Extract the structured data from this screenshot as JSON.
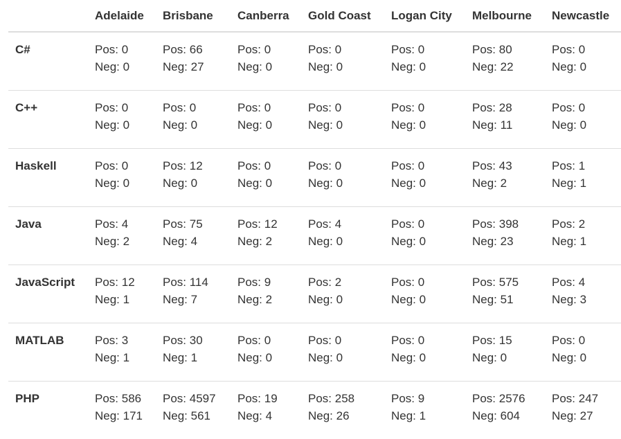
{
  "table": {
    "columns": [
      "",
      "Adelaide",
      "Brisbane",
      "Canberra",
      "Gold Coast",
      "Logan City",
      "Melbourne",
      "Newcastle"
    ],
    "rows": [
      {
        "language": "C#",
        "cells": [
          {
            "pos": "Pos: 0",
            "neg": "Neg: 0"
          },
          {
            "pos": "Pos: 66",
            "neg": "Neg: 27"
          },
          {
            "pos": "Pos: 0",
            "neg": "Neg: 0"
          },
          {
            "pos": "Pos: 0",
            "neg": "Neg: 0"
          },
          {
            "pos": "Pos: 0",
            "neg": "Neg: 0"
          },
          {
            "pos": "Pos: 80",
            "neg": "Neg: 22"
          },
          {
            "pos": "Pos: 0",
            "neg": "Neg: 0"
          }
        ]
      },
      {
        "language": "C++",
        "cells": [
          {
            "pos": "Pos: 0",
            "neg": "Neg: 0"
          },
          {
            "pos": "Pos: 0",
            "neg": "Neg: 0"
          },
          {
            "pos": "Pos: 0",
            "neg": "Neg: 0"
          },
          {
            "pos": "Pos: 0",
            "neg": "Neg: 0"
          },
          {
            "pos": "Pos: 0",
            "neg": "Neg: 0"
          },
          {
            "pos": "Pos: 28",
            "neg": "Neg: 11"
          },
          {
            "pos": "Pos: 0",
            "neg": "Neg: 0"
          }
        ]
      },
      {
        "language": "Haskell",
        "cells": [
          {
            "pos": "Pos: 0",
            "neg": "Neg: 0"
          },
          {
            "pos": "Pos: 12",
            "neg": "Neg: 0"
          },
          {
            "pos": "Pos: 0",
            "neg": "Neg: 0"
          },
          {
            "pos": "Pos: 0",
            "neg": "Neg: 0"
          },
          {
            "pos": "Pos: 0",
            "neg": "Neg: 0"
          },
          {
            "pos": "Pos: 43",
            "neg": "Neg: 2"
          },
          {
            "pos": "Pos: 1",
            "neg": "Neg: 1"
          }
        ]
      },
      {
        "language": "Java",
        "cells": [
          {
            "pos": "Pos: 4",
            "neg": "Neg: 2"
          },
          {
            "pos": "Pos: 75",
            "neg": "Neg: 4"
          },
          {
            "pos": "Pos: 12",
            "neg": "Neg: 2"
          },
          {
            "pos": "Pos: 4",
            "neg": "Neg: 0"
          },
          {
            "pos": "Pos: 0",
            "neg": "Neg: 0"
          },
          {
            "pos": "Pos: 398",
            "neg": "Neg: 23"
          },
          {
            "pos": "Pos: 2",
            "neg": "Neg: 1"
          }
        ]
      },
      {
        "language": "JavaScript",
        "cells": [
          {
            "pos": "Pos: 12",
            "neg": "Neg: 1"
          },
          {
            "pos": "Pos: 114",
            "neg": "Neg: 7"
          },
          {
            "pos": "Pos: 9",
            "neg": "Neg: 2"
          },
          {
            "pos": "Pos: 2",
            "neg": "Neg: 0"
          },
          {
            "pos": "Pos: 0",
            "neg": "Neg: 0"
          },
          {
            "pos": "Pos: 575",
            "neg": "Neg: 51"
          },
          {
            "pos": "Pos: 4",
            "neg": "Neg: 3"
          }
        ]
      },
      {
        "language": "MATLAB",
        "cells": [
          {
            "pos": "Pos: 3",
            "neg": "Neg: 1"
          },
          {
            "pos": "Pos: 30",
            "neg": "Neg: 1"
          },
          {
            "pos": "Pos: 0",
            "neg": "Neg: 0"
          },
          {
            "pos": "Pos: 0",
            "neg": "Neg: 0"
          },
          {
            "pos": "Pos: 0",
            "neg": "Neg: 0"
          },
          {
            "pos": "Pos: 15",
            "neg": "Neg: 0"
          },
          {
            "pos": "Pos: 0",
            "neg": "Neg: 0"
          }
        ]
      },
      {
        "language": "PHP",
        "cells": [
          {
            "pos": "Pos: 586",
            "neg": "Neg: 171"
          },
          {
            "pos": "Pos: 4597",
            "neg": "Neg: 561"
          },
          {
            "pos": "Pos: 19",
            "neg": "Neg: 4"
          },
          {
            "pos": "Pos: 258",
            "neg": "Neg: 26"
          },
          {
            "pos": "Pos: 9",
            "neg": "Neg: 1"
          },
          {
            "pos": "Pos: 2576",
            "neg": "Neg: 604"
          },
          {
            "pos": "Pos: 247",
            "neg": "Neg: 27"
          }
        ]
      }
    ]
  }
}
